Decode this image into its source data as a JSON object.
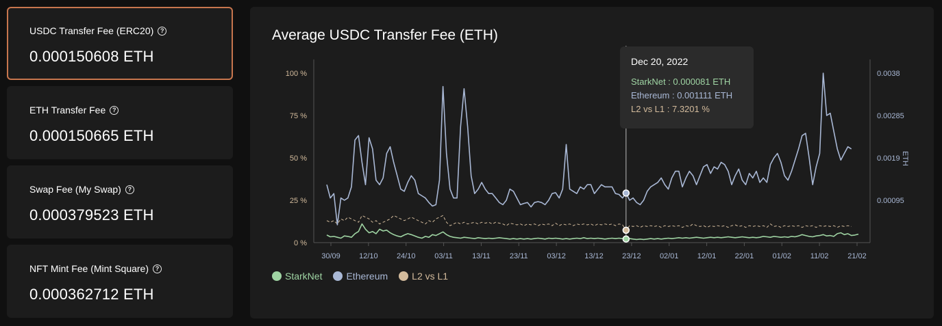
{
  "cards": [
    {
      "title": "USDC Transfer Fee (ERC20)",
      "value": "0.000150608 ETH"
    },
    {
      "title": "ETH Transfer Fee",
      "value": "0.000150665 ETH"
    },
    {
      "title": "Swap Fee (My Swap)",
      "value": "0.000379523 ETH"
    },
    {
      "title": "NFT Mint Fee (Mint Square)",
      "value": "0.000362712 ETH"
    }
  ],
  "help_icon_glyph": "?",
  "colors": {
    "starknet": "#9fd4a3",
    "ethereum": "#a9b8d5",
    "l2vsl1": "#d3bb9c",
    "accent_border": "#c8764e"
  },
  "tooltip": {
    "date": "Dec 20, 2022",
    "starknet": "StarkNet : 0.000081 ETH",
    "ethereum": "Ethereum : 0.001111 ETH",
    "l2vsl1": "L2 vs L1 : 7.3201 %"
  },
  "chart_data": {
    "type": "line",
    "title": "Average USDC Transfer Fee (ETH)",
    "x_tick_labels": [
      "30/09",
      "12/10",
      "24/10",
      "03/11",
      "13/11",
      "23/11",
      "03/12",
      "13/12",
      "23/12",
      "02/01",
      "12/01",
      "22/01",
      "01/02",
      "11/02",
      "21/02"
    ],
    "y_left_ticks": [
      "100 %",
      "75 %",
      "50 %",
      "25 %",
      "0 %"
    ],
    "y_left_range": [
      0,
      100
    ],
    "y_right_ticks": [
      "0.0038",
      "0.00285",
      "0.0019",
      "0.00095"
    ],
    "y_right_range": [
      0,
      0.0038
    ],
    "y_right_label": "ETH",
    "grid": false,
    "legend_position": "bottom-left",
    "hover_index": 85,
    "series": [
      {
        "name": "StarkNet",
        "axis": "right",
        "color": "#9fd4a3",
        "values": [
          0.00017,
          0.00013,
          0.00014,
          0.00012,
          0.0001,
          0.00015,
          0.00014,
          0.00012,
          0.0002,
          0.00025,
          0.00042,
          0.0003,
          0.00022,
          0.00025,
          0.0002,
          0.0003,
          0.00026,
          0.00028,
          0.00022,
          0.00018,
          0.00015,
          0.00013,
          0.00017,
          0.0002,
          0.00018,
          0.00015,
          0.00012,
          0.0001,
          0.00014,
          0.00012,
          0.00018,
          0.00016,
          0.0002,
          0.00024,
          0.00018,
          0.00014,
          0.00012,
          0.00011,
          0.0001,
          0.00012,
          0.00011,
          0.0001,
          9e-05,
          0.00011,
          0.0001,
          9e-05,
          0.0001,
          9e-05,
          0.0001,
          0.00011,
          0.0001,
          9e-05,
          8e-05,
          9e-05,
          8e-05,
          9e-05,
          8e-05,
          9e-05,
          8e-05,
          9e-05,
          0.0001,
          9e-05,
          8e-05,
          0.0001,
          9e-05,
          0.0001,
          9e-05,
          8e-05,
          9e-05,
          8e-05,
          9e-05,
          0.0001,
          9e-05,
          0.00011,
          9e-05,
          0.0001,
          9e-05,
          0.0001,
          9e-05,
          8e-05,
          9e-05,
          0.0001,
          9e-05,
          0.0001,
          9e-05,
          8.1e-05,
          9e-05,
          8e-05,
          7e-05,
          8e-05,
          7e-05,
          8e-05,
          9e-05,
          8e-05,
          9e-05,
          8e-05,
          9e-05,
          0.0001,
          9e-05,
          0.0001,
          0.00011,
          0.0001,
          0.00011,
          0.0001,
          0.00011,
          0.00012,
          0.00011,
          0.0001,
          0.00011,
          0.00012,
          0.00011,
          0.00012,
          0.00011,
          0.00012,
          0.00013,
          0.00012,
          0.00011,
          0.00012,
          0.00013,
          0.00012,
          0.00011,
          0.00012,
          0.00011,
          0.00012,
          0.00014,
          0.00013,
          0.00012,
          0.00014,
          0.00013,
          0.00012,
          0.00013,
          0.00012,
          0.00014,
          0.00013,
          0.00015,
          0.00018,
          0.00016,
          0.00014,
          0.00013,
          0.00015,
          0.00016,
          0.00018,
          0.00015,
          0.00016,
          0.00014,
          0.0002,
          0.00022,
          0.00018,
          0.0002,
          0.00016,
          0.00017,
          0.00019
        ]
      },
      {
        "name": "Ethereum",
        "axis": "right",
        "color": "#a9b8d5",
        "values": [
          0.0013,
          0.001,
          0.0011,
          0.0004,
          0.001,
          0.00095,
          0.001,
          0.00125,
          0.0023,
          0.0024,
          0.0018,
          0.0013,
          0.00235,
          0.0021,
          0.0014,
          0.0013,
          0.00145,
          0.002,
          0.00215,
          0.0018,
          0.0015,
          0.0012,
          0.00115,
          0.00135,
          0.0015,
          0.0014,
          0.0011,
          0.00105,
          0.001,
          0.0009,
          0.00082,
          0.00085,
          0.0014,
          0.0035,
          0.002,
          0.0012,
          0.001,
          0.001,
          0.0026,
          0.00345,
          0.0026,
          0.0015,
          0.0011,
          0.0012,
          0.00135,
          0.0012,
          0.0011,
          0.0011,
          0.001,
          0.0009,
          0.00085,
          0.00095,
          0.0012,
          0.00115,
          0.001,
          0.00085,
          0.00088,
          0.0009,
          0.0008,
          0.0009,
          0.00092,
          0.0009,
          0.00085,
          0.00095,
          0.0011,
          0.00112,
          0.001,
          0.0012,
          0.0022,
          0.0012,
          0.00115,
          0.0011,
          0.00125,
          0.0012,
          0.0013,
          0.0013,
          0.0011,
          0.0012,
          0.0013,
          0.00125,
          0.00125,
          0.00125,
          0.0011,
          0.00108,
          0.001,
          0.001111,
          0.00095,
          0.001,
          0.0009,
          0.00085,
          0.00095,
          0.00115,
          0.00125,
          0.0013,
          0.00135,
          0.00145,
          0.0013,
          0.0012,
          0.00145,
          0.0016,
          0.0016,
          0.00125,
          0.00145,
          0.0016,
          0.0015,
          0.0013,
          0.0015,
          0.0017,
          0.00175,
          0.00155,
          0.0017,
          0.00165,
          0.0018,
          0.00175,
          0.0016,
          0.0013,
          0.0015,
          0.00165,
          0.0014,
          0.0013,
          0.00155,
          0.00145,
          0.0016,
          0.00135,
          0.00145,
          0.00135,
          0.00175,
          0.0019,
          0.002,
          0.0018,
          0.0015,
          0.0014,
          0.0016,
          0.00185,
          0.0021,
          0.0024,
          0.00245,
          0.0019,
          0.0013,
          0.0017,
          0.002,
          0.0038,
          0.00285,
          0.0029,
          0.0025,
          0.0021,
          0.00185,
          0.002,
          0.00215,
          0.0021
        ]
      },
      {
        "name": "L2 vs L1",
        "axis": "left",
        "color": "#d3bb9c",
        "values": [
          13,
          12,
          13,
          11,
          14,
          13,
          15,
          14,
          13,
          12,
          16,
          15,
          14,
          12,
          13,
          11,
          12,
          13,
          14,
          16,
          15,
          14,
          13,
          14,
          15,
          14,
          13,
          12,
          11,
          13,
          12,
          14,
          15,
          16,
          12,
          10,
          11,
          12,
          11,
          12,
          11,
          11.5,
          12,
          11,
          12,
          11.5,
          12,
          11,
          12,
          11.5,
          11,
          10,
          11.5,
          11,
          10.5,
          11,
          10,
          11,
          10.5,
          11,
          10,
          11,
          10.5,
          11,
          10,
          11.5,
          10,
          11,
          10.5,
          11,
          10,
          11,
          10.5,
          11,
          10.5,
          11,
          10,
          11,
          10.5,
          11,
          10.5,
          11,
          10,
          11,
          10.5,
          7.3,
          10,
          9.5,
          10,
          9,
          10,
          9.5,
          10,
          9.5,
          10,
          9,
          10,
          9.5,
          10,
          9.5,
          10,
          9,
          10,
          9.5,
          11,
          10,
          9.5,
          10,
          9,
          10,
          9.5,
          10,
          9.5,
          10,
          9,
          10,
          10.5,
          9.5,
          10,
          9,
          10,
          9.5,
          10,
          9.5,
          10,
          9,
          11,
          9.5,
          10,
          9,
          10,
          9.5,
          10,
          9.5,
          10,
          9,
          10,
          9.5,
          10,
          9,
          10,
          9.5,
          10,
          9.5,
          10,
          9,
          10,
          9.5,
          10,
          9.5
        ]
      }
    ]
  }
}
